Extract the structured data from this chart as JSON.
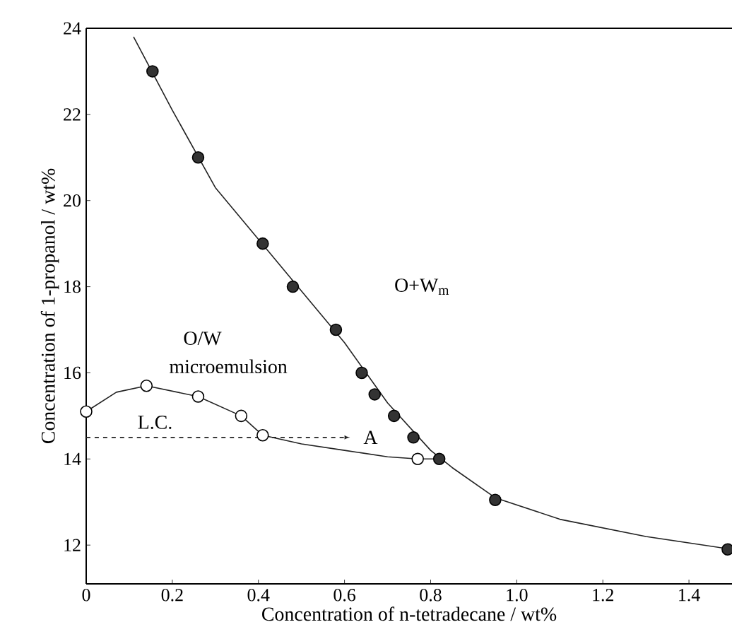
{
  "chart_data": {
    "type": "scatter",
    "xlabel": "Concentration of n-tetradecane / wt%",
    "ylabel": "Concentration of 1-propanol / wt%",
    "xlim": [
      0,
      1.5
    ],
    "ylim": [
      11.1,
      24
    ],
    "xticks": [
      0,
      0.2,
      0.4,
      0.6,
      0.8,
      {
        "value": 1.0,
        "label": "1.0"
      },
      1.2,
      1.4
    ],
    "yticks": [
      12,
      14,
      16,
      18,
      20,
      22,
      24
    ],
    "grid": false,
    "annotations": [
      "O+W$_{m}$",
      "O/W",
      "microemulsion",
      "L.C.",
      "A"
    ],
    "series": [
      {
        "type": "line",
        "color": "#222222",
        "marker": "none",
        "x": [
          0.11,
          0.2,
          0.3,
          0.4,
          0.5,
          0.6,
          0.7,
          0.8,
          0.85,
          0.95,
          1.1,
          1.3,
          1.5
        ],
        "values": [
          23.8,
          22.1,
          20.3,
          19.1,
          17.9,
          16.7,
          15.3,
          14.2,
          13.8,
          13.1,
          12.6,
          12.2,
          11.9
        ]
      },
      {
        "type": "line",
        "color": "#222222",
        "marker": "none",
        "x": [
          0,
          0.07,
          0.14,
          0.26,
          0.36,
          0.41,
          0.5,
          0.6,
          0.7,
          0.77,
          0.82
        ],
        "values": [
          15.1,
          15.55,
          15.7,
          15.45,
          15.0,
          14.55,
          14.35,
          14.2,
          14.05,
          14.0,
          14.0
        ]
      },
      {
        "type": "line",
        "color": "#222222",
        "marker": "none",
        "line_style": "dashed",
        "x": [
          0,
          0.6
        ],
        "values": [
          14.5,
          14.5
        ]
      },
      {
        "color": "#333333",
        "marker": "circle",
        "x": [
          0.154,
          0.26,
          0.41,
          0.48,
          0.58,
          0.64,
          0.67,
          0.715,
          0.76,
          0.82,
          0.95,
          1.49
        ],
        "values": [
          23.0,
          21.0,
          19.0,
          18.0,
          17.0,
          16.0,
          15.5,
          15.0,
          14.5,
          14.0,
          13.05,
          11.9
        ]
      },
      {
        "color": "#ffffff",
        "marker": "circle",
        "x": [
          0,
          0.14,
          0.26,
          0.36,
          0.41,
          0.77
        ],
        "values": [
          15.1,
          15.7,
          15.45,
          15.0,
          14.55,
          14.0
        ]
      }
    ]
  }
}
